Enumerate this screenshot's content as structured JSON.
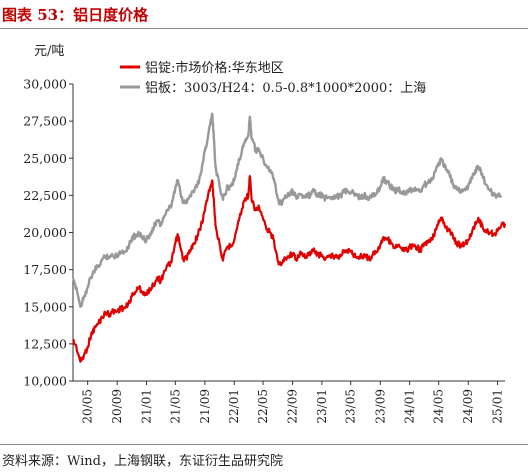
{
  "header": {
    "title": "图表 53：铝日度价格"
  },
  "footer": {
    "source": "资料来源：Wind，上海钢联，东证衍生品研究院"
  },
  "chart_data": {
    "type": "line",
    "ylabel": "元/吨",
    "ylim": [
      10000,
      30000
    ],
    "yticks": [
      "10,000",
      "12,500",
      "15,000",
      "17,500",
      "20,000",
      "22,500",
      "25,000",
      "27,500",
      "30,000"
    ],
    "xticks": [
      "20/05",
      "20/09",
      "21/01",
      "21/05",
      "21/09",
      "22/01",
      "22/05",
      "22/09",
      "23/01",
      "23/05",
      "23/09",
      "24/01",
      "24/05",
      "24/09",
      "25/01"
    ],
    "x_start": "2020-03",
    "x_end": "2025-02",
    "legend_position": "top-left",
    "grid": false,
    "series": [
      {
        "name": "铝锭:市场价格:华东地区",
        "color": "#e00000",
        "x": [
          "2020-03-01",
          "2020-03-15",
          "2020-04-01",
          "2020-04-15",
          "2020-05-01",
          "2020-05-15",
          "2020-06-01",
          "2020-06-15",
          "2020-07-01",
          "2020-07-15",
          "2020-08-01",
          "2020-08-15",
          "2020-09-01",
          "2020-09-15",
          "2020-10-01",
          "2020-10-15",
          "2020-11-01",
          "2020-11-15",
          "2020-12-01",
          "2020-12-15",
          "2021-01-01",
          "2021-01-15",
          "2021-02-01",
          "2021-02-15",
          "2021-03-01",
          "2021-03-15",
          "2021-04-01",
          "2021-04-15",
          "2021-05-01",
          "2021-05-12",
          "2021-06-01",
          "2021-06-15",
          "2021-07-01",
          "2021-07-15",
          "2021-08-01",
          "2021-08-15",
          "2021-09-01",
          "2021-09-15",
          "2021-10-01",
          "2021-10-08",
          "2021-10-15",
          "2021-11-01",
          "2021-11-15",
          "2021-12-01",
          "2021-12-15",
          "2022-01-01",
          "2022-01-15",
          "2022-02-01",
          "2022-02-15",
          "2022-03-01",
          "2022-03-07",
          "2022-03-15",
          "2022-04-01",
          "2022-04-15",
          "2022-05-01",
          "2022-05-15",
          "2022-06-01",
          "2022-06-15",
          "2022-07-01",
          "2022-07-15",
          "2022-08-01",
          "2022-08-15",
          "2022-09-01",
          "2022-09-15",
          "2022-10-01",
          "2022-10-15",
          "2022-11-01",
          "2022-11-15",
          "2022-12-01",
          "2022-12-15",
          "2023-01-01",
          "2023-01-15",
          "2023-02-01",
          "2023-02-15",
          "2023-03-01",
          "2023-03-15",
          "2023-04-01",
          "2023-04-15",
          "2023-05-01",
          "2023-05-15",
          "2023-06-01",
          "2023-06-15",
          "2023-07-01",
          "2023-07-15",
          "2023-08-01",
          "2023-08-15",
          "2023-09-01",
          "2023-09-15",
          "2023-10-01",
          "2023-10-15",
          "2023-11-01",
          "2023-11-15",
          "2023-12-01",
          "2023-12-15",
          "2024-01-01",
          "2024-01-15",
          "2024-02-01",
          "2024-02-15",
          "2024-03-01",
          "2024-03-15",
          "2024-04-01",
          "2024-04-15",
          "2024-05-01",
          "2024-05-15",
          "2024-06-01",
          "2024-06-15",
          "2024-07-01",
          "2024-07-15",
          "2024-08-01",
          "2024-08-15",
          "2024-09-01",
          "2024-09-15",
          "2024-10-01",
          "2024-10-15",
          "2024-11-01",
          "2024-11-15",
          "2024-12-01",
          "2024-12-15",
          "2025-01-01",
          "2025-01-15",
          "2025-02-01"
        ],
        "values": [
          12700,
          12300,
          11300,
          11700,
          12300,
          13100,
          13600,
          13900,
          14300,
          14600,
          14500,
          14700,
          14700,
          14900,
          14900,
          15100,
          15700,
          16000,
          16300,
          16000,
          15800,
          16200,
          16500,
          17000,
          16700,
          17400,
          17800,
          18000,
          19300,
          19800,
          18200,
          18300,
          18700,
          19200,
          19800,
          20400,
          21500,
          22600,
          23500,
          22300,
          20500,
          19200,
          18100,
          19000,
          19100,
          19500,
          20500,
          21500,
          22300,
          22500,
          23800,
          22100,
          21500,
          21700,
          20900,
          20200,
          20000,
          19500,
          18100,
          17800,
          18300,
          18400,
          18600,
          18200,
          18600,
          18400,
          18500,
          18600,
          18800,
          18500,
          18500,
          18200,
          18400,
          18400,
          18500,
          18400,
          18700,
          18800,
          18700,
          18500,
          18300,
          18400,
          18500,
          18200,
          18500,
          18700,
          19200,
          19700,
          19600,
          19300,
          19000,
          19100,
          18800,
          18800,
          19000,
          19100,
          19000,
          18800,
          19200,
          19300,
          19500,
          20000,
          20800,
          21000,
          20300,
          20200,
          19600,
          19300,
          19100,
          19200,
          19500,
          19900,
          20700,
          20900,
          20300,
          20100,
          20000,
          19900,
          20100,
          20400,
          20600
        ]
      },
      {
        "name": "铝板：3003/H24：0.5-0.8*1000*2000：上海",
        "color": "#999999",
        "x": [
          "2020-03-01",
          "2020-03-15",
          "2020-04-01",
          "2020-04-15",
          "2020-05-01",
          "2020-05-15",
          "2020-06-01",
          "2020-06-15",
          "2020-07-01",
          "2020-07-15",
          "2020-08-01",
          "2020-08-15",
          "2020-09-01",
          "2020-09-15",
          "2020-10-01",
          "2020-10-15",
          "2020-11-01",
          "2020-11-15",
          "2020-12-01",
          "2020-12-15",
          "2021-01-01",
          "2021-01-15",
          "2021-02-01",
          "2021-02-15",
          "2021-03-01",
          "2021-03-15",
          "2021-04-01",
          "2021-04-15",
          "2021-05-01",
          "2021-05-12",
          "2021-06-01",
          "2021-06-15",
          "2021-07-01",
          "2021-07-15",
          "2021-08-01",
          "2021-08-15",
          "2021-09-01",
          "2021-09-15",
          "2021-10-01",
          "2021-10-08",
          "2021-10-15",
          "2021-11-01",
          "2021-11-15",
          "2021-12-01",
          "2021-12-15",
          "2022-01-01",
          "2022-01-15",
          "2022-02-01",
          "2022-02-15",
          "2022-03-01",
          "2022-03-07",
          "2022-03-15",
          "2022-04-01",
          "2022-04-15",
          "2022-05-01",
          "2022-05-15",
          "2022-06-01",
          "2022-06-15",
          "2022-07-01",
          "2022-07-15",
          "2022-08-01",
          "2022-08-15",
          "2022-09-01",
          "2022-09-15",
          "2022-10-01",
          "2022-10-15",
          "2022-11-01",
          "2022-11-15",
          "2022-12-01",
          "2022-12-15",
          "2023-01-01",
          "2023-01-15",
          "2023-02-01",
          "2023-02-15",
          "2023-03-01",
          "2023-03-15",
          "2023-04-01",
          "2023-04-15",
          "2023-05-01",
          "2023-05-15",
          "2023-06-01",
          "2023-06-15",
          "2023-07-01",
          "2023-07-15",
          "2023-08-01",
          "2023-08-15",
          "2023-09-01",
          "2023-09-15",
          "2023-10-01",
          "2023-10-15",
          "2023-11-01",
          "2023-11-15",
          "2023-12-01",
          "2023-12-15",
          "2024-01-01",
          "2024-01-15",
          "2024-02-01",
          "2024-02-15",
          "2024-03-01",
          "2024-03-15",
          "2024-04-01",
          "2024-04-15",
          "2024-05-01",
          "2024-05-15",
          "2024-06-01",
          "2024-06-15",
          "2024-07-01",
          "2024-07-15",
          "2024-08-01",
          "2024-08-15",
          "2024-09-01",
          "2024-09-15",
          "2024-10-01",
          "2024-10-15",
          "2024-11-01",
          "2024-11-15",
          "2024-12-01",
          "2024-12-15",
          "2025-01-01",
          "2025-01-15"
        ],
        "values": [
          16700,
          16300,
          15000,
          15700,
          16300,
          17000,
          17500,
          17700,
          18200,
          18400,
          18400,
          18400,
          18500,
          18700,
          18700,
          19000,
          19600,
          19800,
          20000,
          19600,
          19500,
          19900,
          20400,
          20800,
          20500,
          21100,
          21500,
          21800,
          23000,
          23500,
          22000,
          22100,
          22500,
          22800,
          23200,
          24000,
          25500,
          26600,
          28000,
          26400,
          24500,
          23100,
          22200,
          23000,
          23100,
          23500,
          24600,
          25400,
          26200,
          26500,
          27800,
          26300,
          25500,
          25500,
          25000,
          24500,
          24200,
          23600,
          22300,
          21900,
          22500,
          22600,
          22800,
          22400,
          22600,
          22400,
          22400,
          22600,
          22800,
          22500,
          22500,
          22300,
          22400,
          22400,
          22500,
          22400,
          22700,
          22800,
          22700,
          22600,
          22400,
          22400,
          22500,
          22200,
          22500,
          22600,
          23100,
          23600,
          23400,
          23100,
          22800,
          22900,
          22600,
          22700,
          22800,
          22900,
          22900,
          22800,
          23200,
          23300,
          23500,
          24100,
          24700,
          24900,
          24200,
          23900,
          23200,
          22900,
          22800,
          22900,
          23100,
          23600,
          24200,
          24400,
          23700,
          23200,
          22800,
          22600,
          22500,
          22500
        ]
      }
    ]
  }
}
